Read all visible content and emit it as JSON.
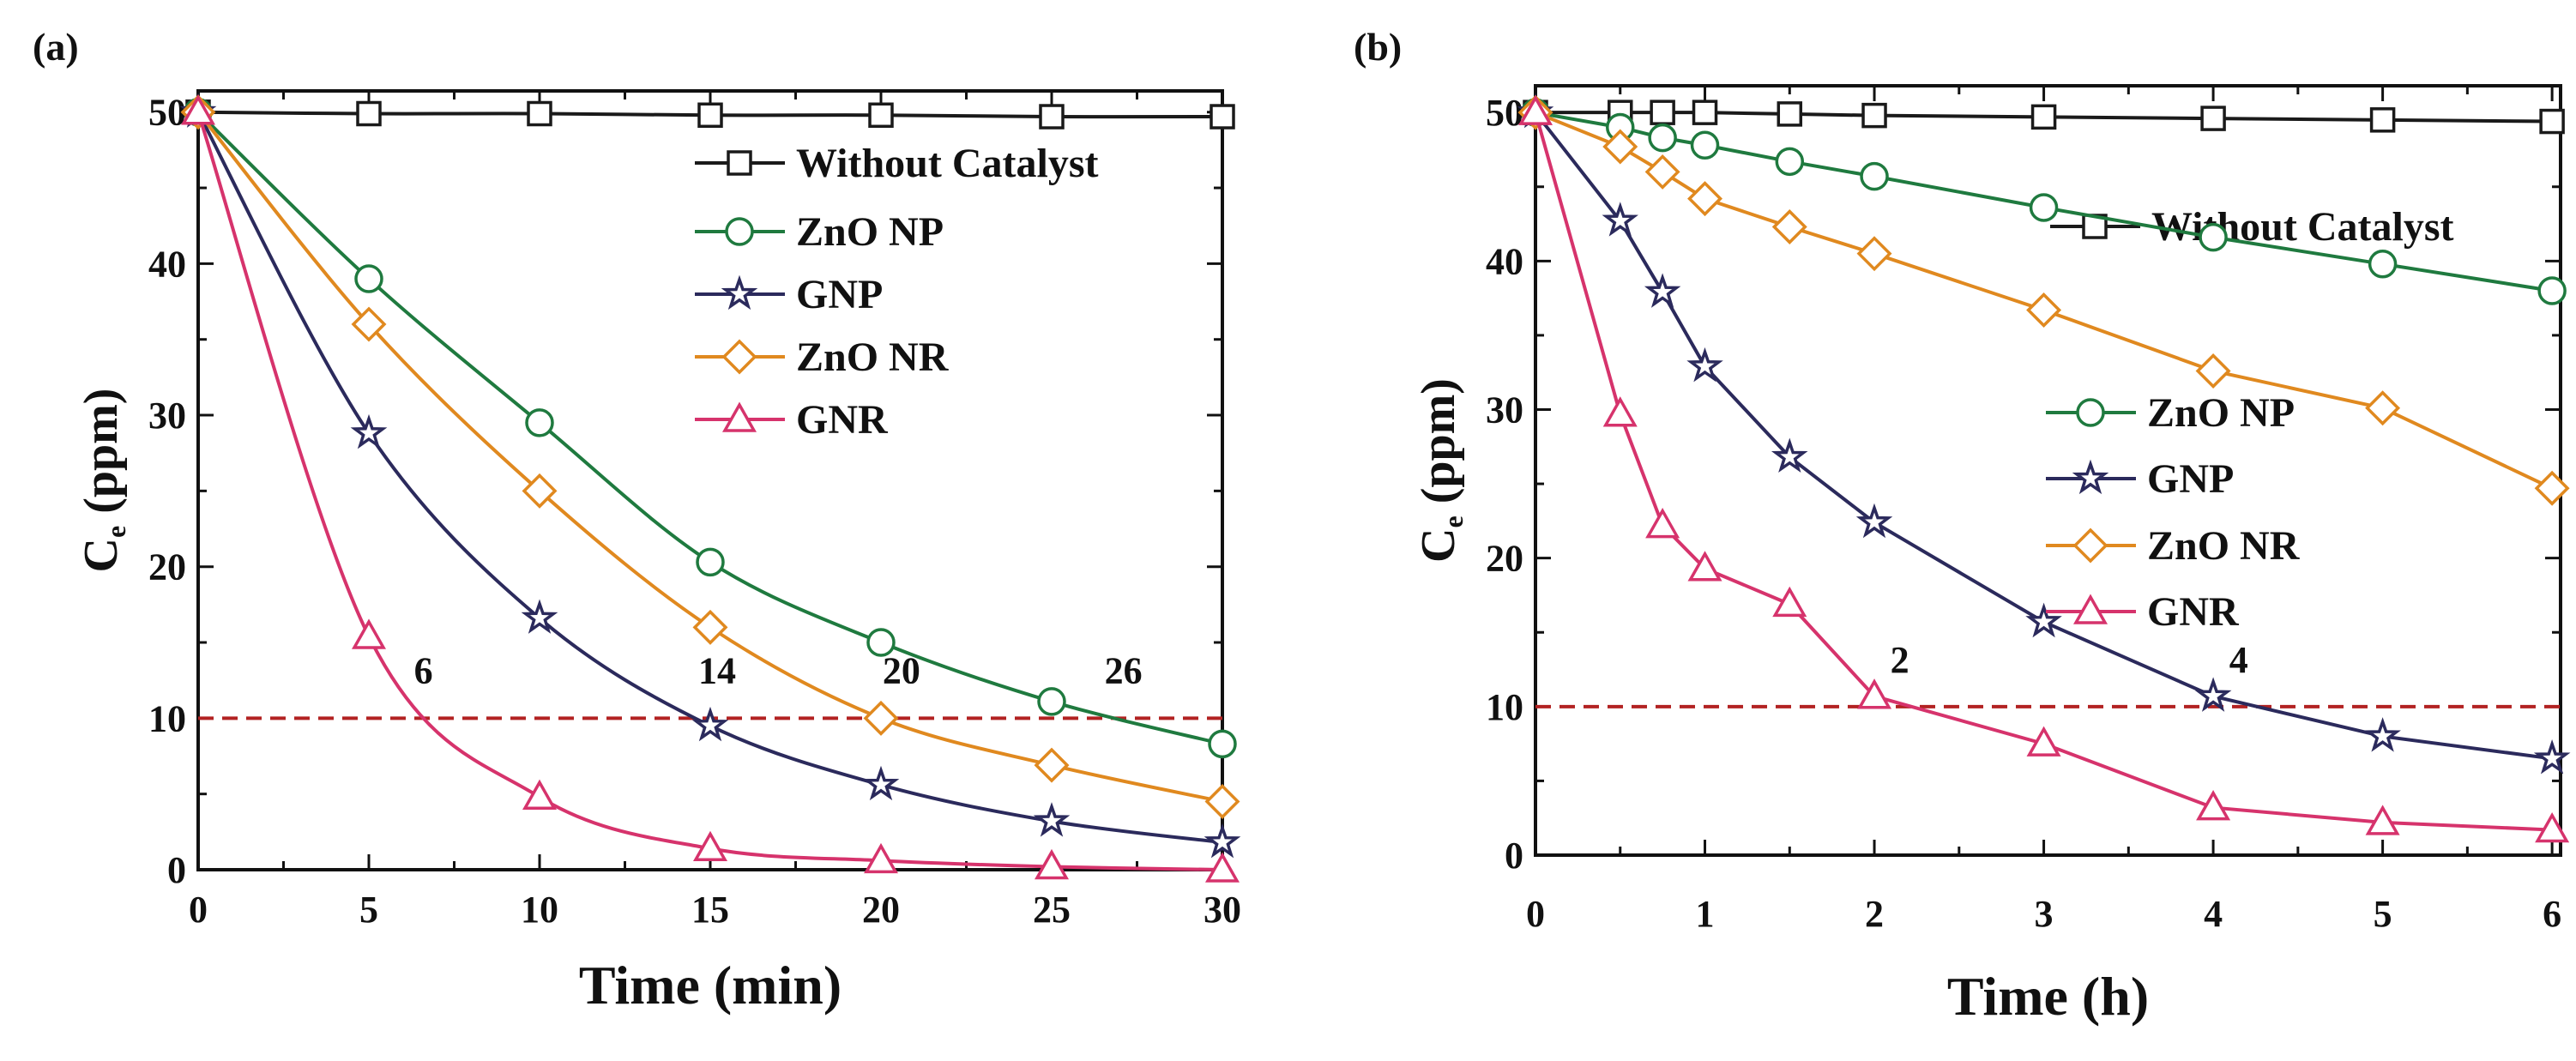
{
  "chart_data": [
    {
      "panel_label": "(a)",
      "type": "line",
      "xlabel": "Time (min)",
      "ylabel": {
        "main": "C",
        "sub": "e",
        "unit": " (ppm)"
      },
      "xlim": [
        0,
        30
      ],
      "ylim": [
        0,
        51.4
      ],
      "xticks": [
        0,
        5,
        10,
        15,
        20,
        25,
        30
      ],
      "yticks": [
        0,
        10,
        20,
        30,
        40,
        50
      ],
      "grid": false,
      "legend_placement": "top-right",
      "x": [
        0,
        5,
        10,
        15,
        20,
        25,
        30
      ],
      "series": [
        {
          "name": "Without Catalyst",
          "marker": "square",
          "color": "#1a1a1a",
          "values": [
            50,
            49.9,
            49.9,
            49.8,
            49.8,
            49.7,
            49.7
          ]
        },
        {
          "name": "ZnO NP",
          "marker": "circle",
          "color": "#1f7a3f",
          "values": [
            50,
            39,
            29.5,
            20.3,
            15,
            11.1,
            8.3
          ]
        },
        {
          "name": "GNP",
          "marker": "star",
          "color": "#2b2a5c",
          "values": [
            50,
            28.8,
            16.6,
            9.5,
            5.6,
            3.2,
            1.8
          ]
        },
        {
          "name": "ZnO NR",
          "marker": "diamond",
          "color": "#e0891f",
          "values": [
            50,
            36,
            25,
            16,
            10,
            6.9,
            4.5
          ]
        },
        {
          "name": "GNR",
          "marker": "triangle",
          "color": "#d6336c",
          "values": [
            50,
            15.4,
            4.8,
            1.4,
            0.6,
            0.2,
            0
          ]
        }
      ],
      "reference_line": {
        "y": 10,
        "color": "#b22222",
        "style": "dashed"
      },
      "annotations": [
        {
          "text": "6",
          "x": 6.6,
          "y": 12.3
        },
        {
          "text": "14",
          "x": 15.2,
          "y": 12.3
        },
        {
          "text": "20",
          "x": 20.6,
          "y": 12.3
        },
        {
          "text": "26",
          "x": 27.1,
          "y": 12.3
        }
      ]
    },
    {
      "panel_label": "(b)",
      "type": "line",
      "xlabel": "Time (h)",
      "ylabel": {
        "main": "C",
        "sub": "e",
        "unit": " (ppm)"
      },
      "xlim": [
        0,
        6.05
      ],
      "ylim": [
        0,
        51.8
      ],
      "xticks": [
        0,
        1,
        2,
        3,
        4,
        5,
        6
      ],
      "yticks": [
        0,
        10,
        20,
        30,
        40,
        50
      ],
      "grid": false,
      "legend_placement": "top-right (Without Catalyst), center-right (others)",
      "x": [
        0,
        0.5,
        0.75,
        1,
        1.5,
        2,
        3,
        4,
        5,
        6
      ],
      "series": [
        {
          "name": "Without Catalyst",
          "marker": "square",
          "color": "#1a1a1a",
          "values": [
            50,
            50,
            50,
            50,
            49.9,
            49.8,
            49.7,
            49.6,
            49.5,
            49.4
          ]
        },
        {
          "name": "ZnO NP",
          "marker": "circle",
          "color": "#1f7a3f",
          "values": [
            50,
            49,
            48.3,
            47.8,
            46.7,
            45.7,
            43.6,
            41.6,
            39.8,
            38
          ]
        },
        {
          "name": "GNP",
          "marker": "star",
          "color": "#2b2a5c",
          "values": [
            50,
            42.7,
            37.9,
            32.9,
            26.8,
            22.4,
            15.7,
            10.7,
            8,
            6.5
          ]
        },
        {
          "name": "ZnO NR",
          "marker": "diamond",
          "color": "#e0891f",
          "values": [
            50,
            47.7,
            46,
            44.2,
            42.3,
            40.5,
            36.7,
            32.6,
            30.1,
            24.7
          ]
        },
        {
          "name": "GNR",
          "marker": "triangle",
          "color": "#d6336c",
          "values": [
            50,
            29.7,
            22.2,
            19.3,
            16.9,
            10.7,
            7.5,
            3.2,
            2.2,
            1.7
          ]
        }
      ],
      "reference_line": {
        "y": 10,
        "color": "#b22222",
        "style": "dashed"
      },
      "annotations": [
        {
          "text": "2",
          "x": 2.15,
          "y": 12.3
        },
        {
          "text": "4",
          "x": 4.15,
          "y": 12.3
        }
      ]
    }
  ]
}
